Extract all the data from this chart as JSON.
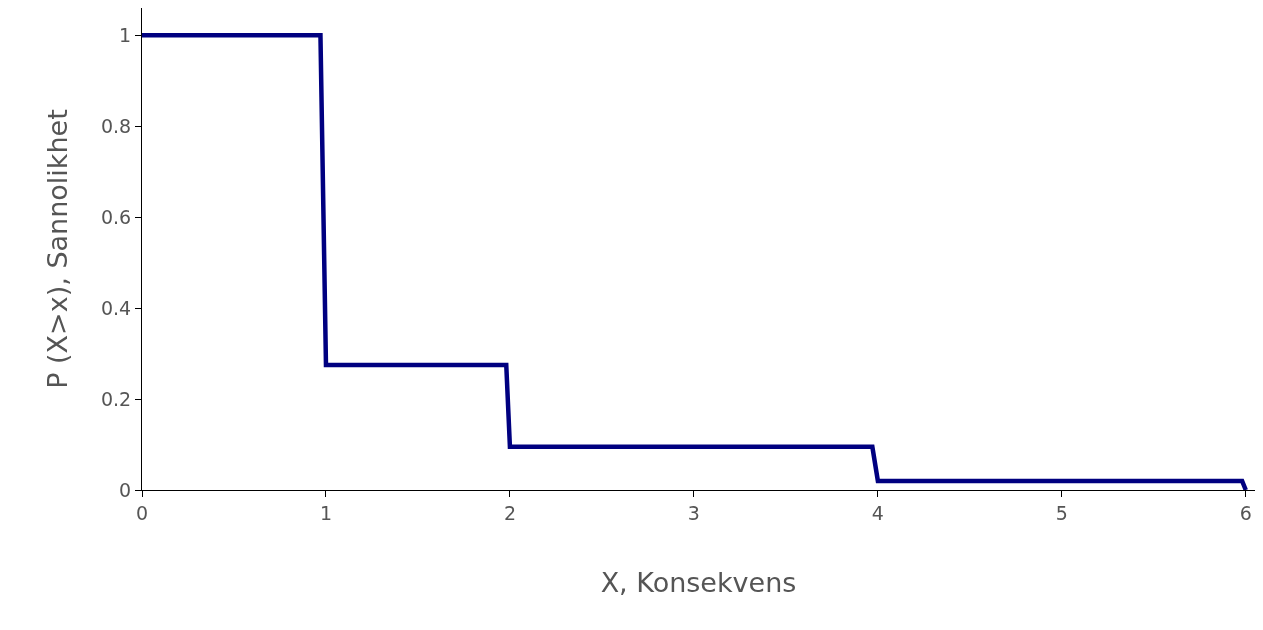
{
  "chart_data": {
    "type": "line",
    "xlabel": "X, Konsekvens",
    "ylabel": "P (X>x), Sannolikhet",
    "x": [
      0,
      0.97,
      1.0,
      1.98,
      2.0,
      3.97,
      4.0,
      5.98,
      6.0
    ],
    "series": [
      {
        "color": "#000080",
        "values": [
          1,
          1,
          0.275,
          0.275,
          0.095,
          0.095,
          0.02,
          0.02,
          0
        ]
      }
    ],
    "xlim": [
      0,
      6.05
    ],
    "xticks": [
      0,
      1,
      2,
      3,
      4,
      5,
      6
    ],
    "ylim": [
      0,
      1.06
    ],
    "yticks": [
      0,
      {
        "value": 0.2,
        "label": "0.2"
      },
      {
        "value": 0.4,
        "label": "0.4"
      },
      {
        "value": 0.6,
        "label": "0.6"
      },
      {
        "value": 0.8,
        "label": "0.8"
      },
      1
    ],
    "marker": "none",
    "line_style": "solid"
  }
}
